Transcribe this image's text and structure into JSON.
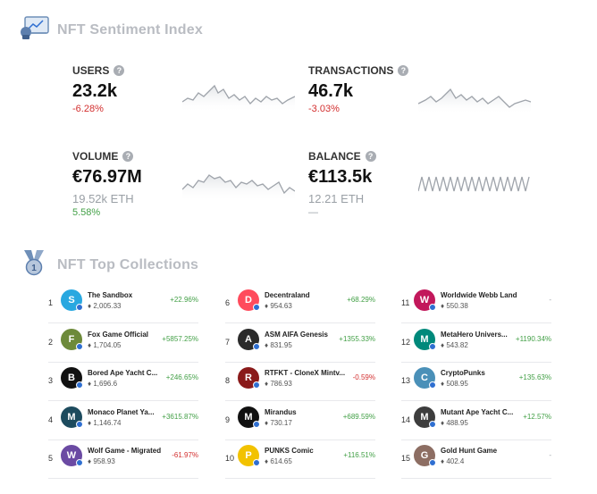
{
  "sentiment": {
    "title": "NFT Sentiment Index",
    "icon": "analytics-board-icon",
    "metrics": [
      {
        "key": "users",
        "label": "USERS",
        "value": "23.2k",
        "sub": "",
        "change": "-6.28%",
        "trend": "neg"
      },
      {
        "key": "transactions",
        "label": "TRANSACTIONS",
        "value": "46.7k",
        "sub": "",
        "change": "-3.03%",
        "trend": "neg"
      },
      {
        "key": "volume",
        "label": "VOLUME",
        "value": "€76.97M",
        "sub": "19.52k ETH",
        "change": "5.58%",
        "trend": "pos"
      },
      {
        "key": "balance",
        "label": "BALANCE",
        "value": "€113.5k",
        "sub": "12.21 ETH",
        "change": "—",
        "trend": "muted"
      }
    ]
  },
  "collections": {
    "title": "NFT Top Collections",
    "icon": "medal-icon",
    "eth_symbol": "♦",
    "items": [
      {
        "rank": "1",
        "name": "The Sandbox",
        "value": "2,005.33",
        "change": "+22.96%",
        "trend": "pos",
        "color": "#29a8e0",
        "glyph": "S"
      },
      {
        "rank": "2",
        "name": "Fox Game Official",
        "value": "1,704.05",
        "change": "+5857.25%",
        "trend": "pos",
        "color": "#6d8a3a",
        "glyph": "F"
      },
      {
        "rank": "3",
        "name": "Bored Ape Yacht C...",
        "value": "1,696.6",
        "change": "+246.65%",
        "trend": "pos",
        "color": "#111111",
        "glyph": "B"
      },
      {
        "rank": "4",
        "name": "Monaco Planet Ya...",
        "value": "1,146.74",
        "change": "+3615.87%",
        "trend": "pos",
        "color": "#1d4b5e",
        "glyph": "M"
      },
      {
        "rank": "5",
        "name": "Wolf Game - Migrated",
        "value": "958.93",
        "change": "-61.97%",
        "trend": "neg",
        "color": "#6b4aa3",
        "glyph": "W"
      },
      {
        "rank": "6",
        "name": "Decentraland",
        "value": "954.63",
        "change": "+68.29%",
        "trend": "pos",
        "color": "#ff4b5c",
        "glyph": "D"
      },
      {
        "rank": "7",
        "name": "ASM AIFA Genesis",
        "value": "831.95",
        "change": "+1355.33%",
        "trend": "pos",
        "color": "#2b2b2b",
        "glyph": "A"
      },
      {
        "rank": "8",
        "name": "RTFKT - CloneX Mintv...",
        "value": "786.93",
        "change": "-0.59%",
        "trend": "neg",
        "color": "#8a1a1a",
        "glyph": "R"
      },
      {
        "rank": "9",
        "name": "Mirandus",
        "value": "730.17",
        "change": "+689.59%",
        "trend": "pos",
        "color": "#111111",
        "glyph": "M"
      },
      {
        "rank": "10",
        "name": "PUNKS Comic",
        "value": "614.65",
        "change": "+116.51%",
        "trend": "pos",
        "color": "#f2c200",
        "glyph": "P"
      },
      {
        "rank": "11",
        "name": "Worldwide Webb Land",
        "value": "550.38",
        "change": "-",
        "trend": "muted",
        "color": "#c2185b",
        "glyph": "W"
      },
      {
        "rank": "12",
        "name": "MetaHero Univers...",
        "value": "543.82",
        "change": "+1190.34%",
        "trend": "pos",
        "color": "#00897b",
        "glyph": "M"
      },
      {
        "rank": "13",
        "name": "CryptoPunks",
        "value": "508.95",
        "change": "+135.63%",
        "trend": "pos",
        "color": "#4a90b8",
        "glyph": "C"
      },
      {
        "rank": "14",
        "name": "Mutant Ape Yacht C...",
        "value": "488.95",
        "change": "+12.57%",
        "trend": "pos",
        "color": "#3d3d3d",
        "glyph": "M"
      },
      {
        "rank": "15",
        "name": "Gold Hunt Game",
        "value": "402.4",
        "change": "-",
        "trend": "muted",
        "color": "#8d6e63",
        "glyph": "G"
      }
    ]
  },
  "colors": {
    "positive": "#43a047",
    "negative": "#d32f2f",
    "muted": "#9aa0a6",
    "heading": "#b9bcc2"
  }
}
